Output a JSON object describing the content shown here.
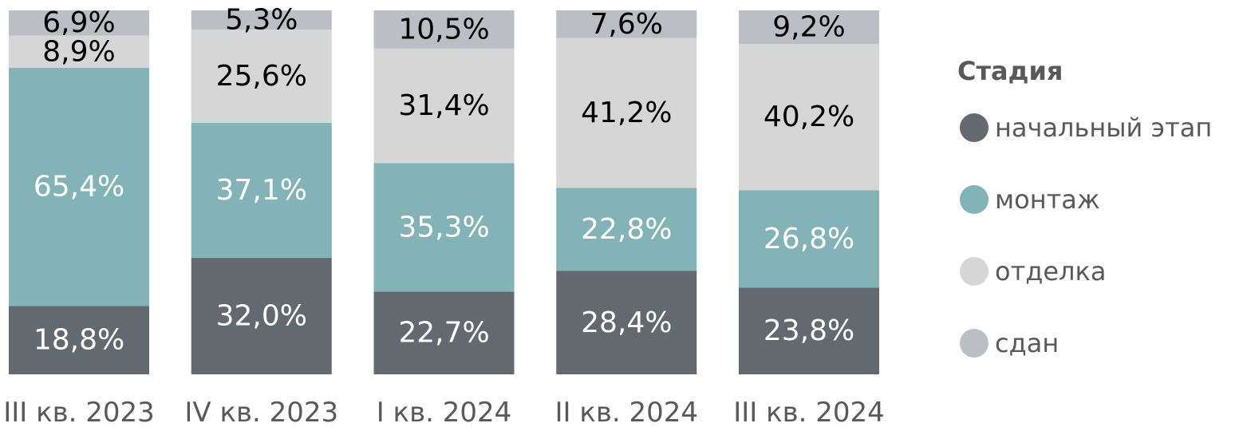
{
  "chart_data": {
    "type": "bar",
    "stacked": true,
    "normalized": true,
    "categories": [
      "III кв. 2023",
      "IV кв. 2023",
      "I кв. 2024",
      "II кв. 2024",
      "III кв. 2024"
    ],
    "series": [
      {
        "name": "начальный этап",
        "color": "#636a6f",
        "values": [
          18.8,
          32.0,
          22.7,
          28.4,
          23.8
        ],
        "labels": [
          "18,8%",
          "32,0%",
          "22,7%",
          "28,4%",
          "23,8%"
        ],
        "label_color": "#ffffff"
      },
      {
        "name": "монтаж",
        "color": "#82b3b7",
        "values": [
          65.4,
          37.1,
          35.3,
          22.8,
          26.8
        ],
        "labels": [
          "65,4%",
          "37,1%",
          "35,3%",
          "22,8%",
          "26,8%"
        ],
        "label_color": "#ffffff"
      },
      {
        "name": "отделка",
        "color": "#d6d6d7",
        "values": [
          8.9,
          25.6,
          31.4,
          41.2,
          40.2
        ],
        "labels": [
          "8,9%",
          "25,6%",
          "31,4%",
          "41,2%",
          "40,2%"
        ],
        "label_color": "#000000"
      },
      {
        "name": "сдан",
        "color": "#bbbec2",
        "values": [
          6.9,
          5.3,
          10.5,
          7.6,
          9.2
        ],
        "labels": [
          "6,9%",
          "5,3%",
          "10,5%",
          "7,6%",
          "9,2%"
        ],
        "label_color": "#000000"
      }
    ],
    "legend": {
      "title": "Стадия",
      "position": "right"
    },
    "title": "",
    "xlabel": "",
    "ylabel": "",
    "ylim": [
      0,
      100
    ],
    "grid": false
  }
}
